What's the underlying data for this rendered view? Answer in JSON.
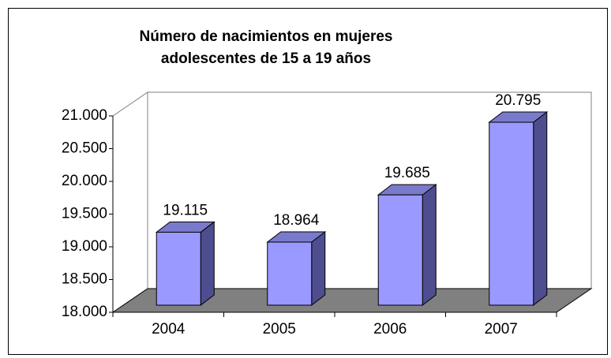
{
  "chart_data": {
    "type": "bar3d",
    "title": "Número de nacimientos en mujeres adolescentes de 15 a 19 años",
    "categories": [
      "2004",
      "2005",
      "2006",
      "2007"
    ],
    "values": [
      19115,
      18964,
      19685,
      20795
    ],
    "value_labels": [
      "19.115",
      "18.964",
      "19.685",
      "20.795"
    ],
    "color": "#9999ff",
    "ylim": [
      18000,
      21000
    ],
    "yticks": [
      {
        "value": 18000,
        "label": "18.000"
      },
      {
        "value": 18500,
        "label": "18.500"
      },
      {
        "value": 19000,
        "label": "19.000"
      },
      {
        "value": 19500,
        "label": "19.500"
      },
      {
        "value": 20000,
        "label": "20.000"
      },
      {
        "value": 20500,
        "label": "20.500"
      },
      {
        "value": 21000,
        "label": "21.000"
      }
    ]
  }
}
